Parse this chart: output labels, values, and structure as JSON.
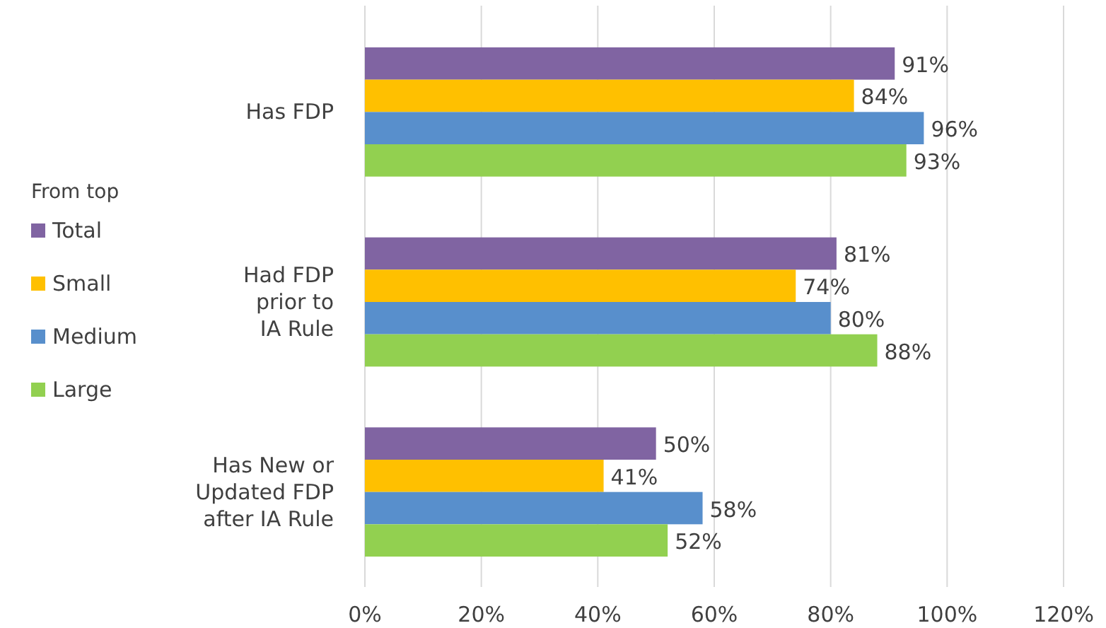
{
  "chart_data": {
    "type": "bar",
    "orientation": "horizontal",
    "categories": [
      "Has FDP",
      "Had FDP\nprior to\nIA Rule",
      "Has New or\nUpdated FDP\nafter IA Rule"
    ],
    "legend_title": "From top",
    "legend": "left",
    "grid": "x",
    "xlim": [
      0,
      120
    ],
    "xticks": [
      {
        "value": 0,
        "label": "0%"
      },
      {
        "value": 20,
        "label": "20%"
      },
      {
        "value": 40,
        "label": "40%"
      },
      {
        "value": 60,
        "label": "60%"
      },
      {
        "value": 80,
        "label": "80%"
      },
      {
        "value": 100,
        "label": "100%"
      },
      {
        "value": 120,
        "label": "120%"
      }
    ],
    "series": [
      {
        "name": "Total",
        "color": "#8064a2",
        "values": [
          91,
          81,
          50
        ],
        "value_labels": [
          "91%",
          "81%",
          "50%"
        ]
      },
      {
        "name": "Small",
        "color": "#ffc000",
        "values": [
          84,
          74,
          41
        ],
        "value_labels": [
          "84%",
          "74%",
          "41%"
        ]
      },
      {
        "name": "Medium",
        "color": "#588fcc",
        "values": [
          96,
          80,
          58
        ],
        "value_labels": [
          "96%",
          "80%",
          "58%"
        ]
      },
      {
        "name": "Large",
        "color": "#92d050",
        "values": [
          93,
          88,
          52
        ],
        "value_labels": [
          "93%",
          "88%",
          "52%"
        ]
      }
    ]
  }
}
